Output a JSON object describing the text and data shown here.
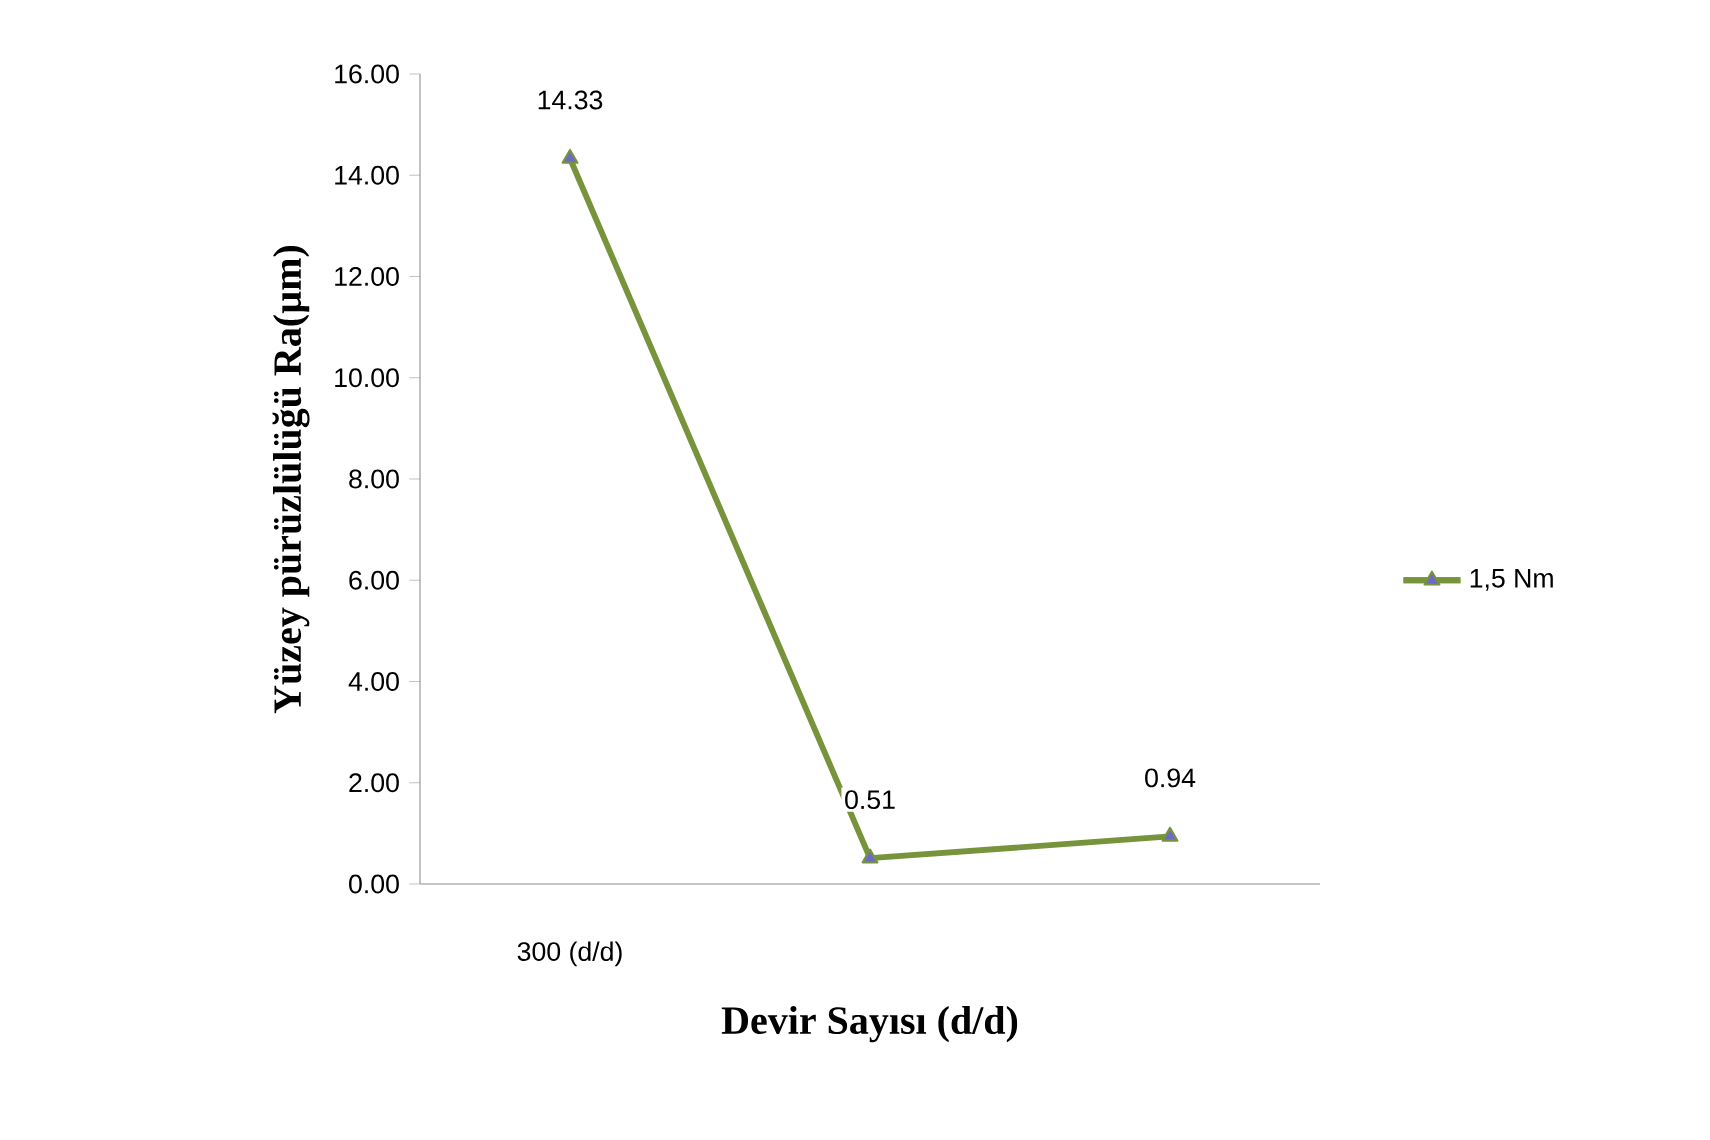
{
  "chart_data": {
    "type": "line",
    "xlabel": "Devir Sayısı (d/d)",
    "ylabel": "Yüzey pürüzlülüğü Ra(µm)",
    "categories": [
      "300 (d/d)",
      null,
      null
    ],
    "series": [
      {
        "name": "1,5 Nm",
        "color": "#77933c",
        "values": [
          14.33,
          0.51,
          0.94
        ]
      }
    ],
    "ylim": [
      0,
      16
    ],
    "yticks": [
      {
        "value": 0,
        "label": "0.00"
      },
      {
        "value": 2,
        "label": "2.00"
      },
      {
        "value": 4,
        "label": "4.00"
      },
      {
        "value": 6,
        "label": "6.00"
      },
      {
        "value": 8,
        "label": "8.00"
      },
      {
        "value": 10,
        "label": "10.00"
      },
      {
        "value": 12,
        "label": "12.00"
      },
      {
        "value": 14,
        "label": "14.00"
      },
      {
        "value": 16,
        "label": "16.00"
      }
    ],
    "data_labels": true,
    "legend": "right",
    "marker": "triangle",
    "grid": false
  }
}
